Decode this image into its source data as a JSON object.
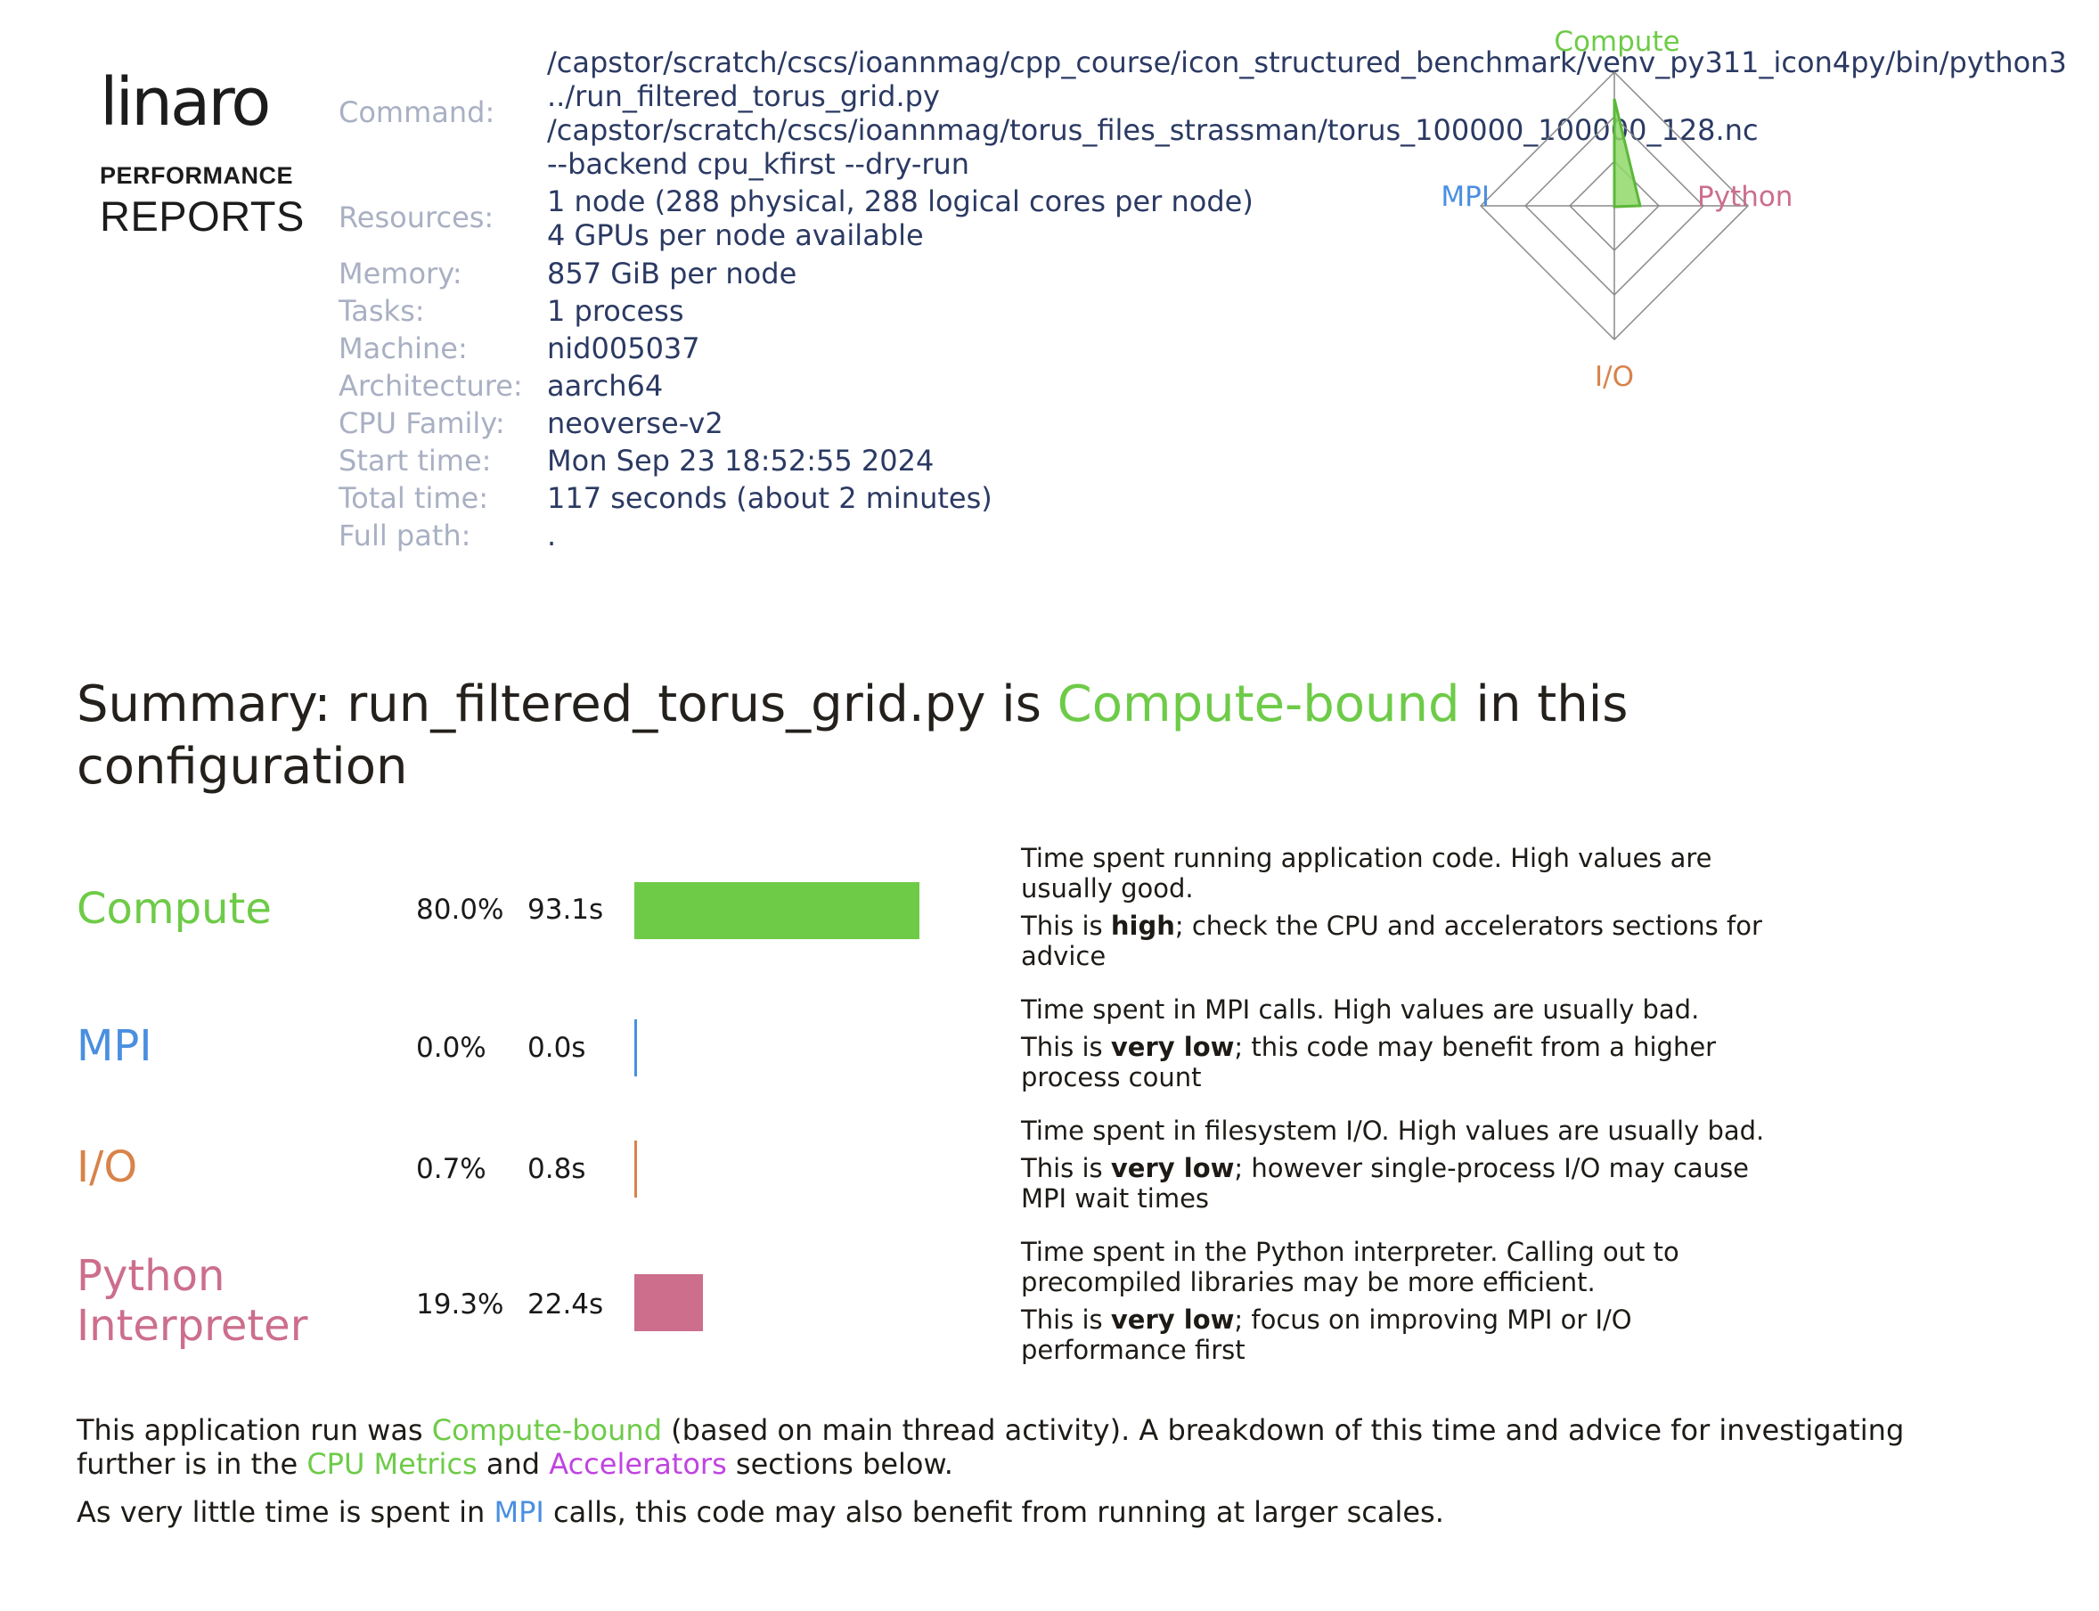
{
  "logo": {
    "brand": "linaro",
    "line1": "PERFORMANCE",
    "line2": "REPORTS"
  },
  "info": {
    "command_label": "Command:",
    "command_lines": [
      "/capstor/scratch/cscs/ioannmag/cpp_course/icon_structured_benchmark/venv_py311_icon4py/bin/python3",
      "../run_filtered_torus_grid.py",
      "/capstor/scratch/cscs/ioannmag/torus_files_strassman/torus_100000_100000_128.nc",
      "--backend cpu_kfirst --dry-run"
    ],
    "resources_label": "Resources:",
    "resources_lines": [
      "1 node (288 physical, 288 logical cores per node)",
      "4 GPUs per node available"
    ],
    "memory_label": "Memory:",
    "memory": "857 GiB per node",
    "tasks_label": "Tasks:",
    "tasks": "1 process",
    "machine_label": "Machine:",
    "machine": "nid005037",
    "architecture_label": "Architecture:",
    "architecture": "aarch64",
    "cpu_family_label": "CPU Family:",
    "cpu_family": "neoverse-v2",
    "start_time_label": "Start time:",
    "start_time": "Mon Sep 23 18:52:55 2024",
    "total_time_label": "Total time:",
    "total_time": "117 seconds (about 2 minutes)",
    "full_path_label": "Full path:",
    "full_path": "."
  },
  "radar": {
    "labels": {
      "top": "Compute",
      "left": "MPI",
      "right": "Python",
      "bottom": "I/O"
    },
    "values": {
      "compute": 0.8,
      "mpi": 0.0,
      "python": 0.193,
      "io": 0.007
    }
  },
  "summary": {
    "prefix": "Summary: run_filtered_torus_grid.py is ",
    "highlight": "Compute-bound",
    "suffix": " in this configuration"
  },
  "metrics": [
    {
      "name": "Compute",
      "percent": "80.0%",
      "seconds": "93.1s",
      "fraction": 0.8,
      "color": "#6ecb48",
      "desc1": "Time spent running application code. High values are usually good.",
      "desc2_pre": "This is ",
      "desc2_bold": "high",
      "desc2_post": "; check the CPU and accelerators sections for advice"
    },
    {
      "name": "MPI",
      "percent": "0.0%",
      "seconds": "0.0s",
      "fraction": 0.0,
      "color": "#4a8fe0",
      "desc1": "Time spent in MPI calls. High values are usually bad.",
      "desc2_pre": "This is ",
      "desc2_bold": "very low",
      "desc2_post": "; this code may benefit from a higher process count"
    },
    {
      "name": "I/O",
      "percent": "0.7%",
      "seconds": "0.8s",
      "fraction": 0.007,
      "color": "#d8834a",
      "desc1": "Time spent in filesystem I/O. High values are usually bad.",
      "desc2_pre": "This is ",
      "desc2_bold": "very low",
      "desc2_post": "; however single-process I/O may cause MPI wait times"
    },
    {
      "name_line1": "Python",
      "name_line2": "Interpreter",
      "percent": "19.3%",
      "seconds": "22.4s",
      "fraction": 0.193,
      "color": "#cc6e8c",
      "desc1": "Time spent in the Python interpreter. Calling out to precompiled libraries may be more efficient.",
      "desc2_pre": "This is ",
      "desc2_bold": "very low",
      "desc2_post": "; focus on improving MPI or I/O performance first"
    }
  ],
  "footer": {
    "p1_a": "This application run was ",
    "p1_b": "Compute-bound",
    "p1_c": " (based on main thread activity). A breakdown of this time and advice for investigating further is in the ",
    "p1_d": "CPU Metrics",
    "p1_e": " and ",
    "p1_f": "Accelerators",
    "p1_g": " sections below.",
    "p2_a": "As very little time is spent in ",
    "p2_b": "MPI",
    "p2_c": " calls, this code may also benefit from running at larger scales."
  }
}
